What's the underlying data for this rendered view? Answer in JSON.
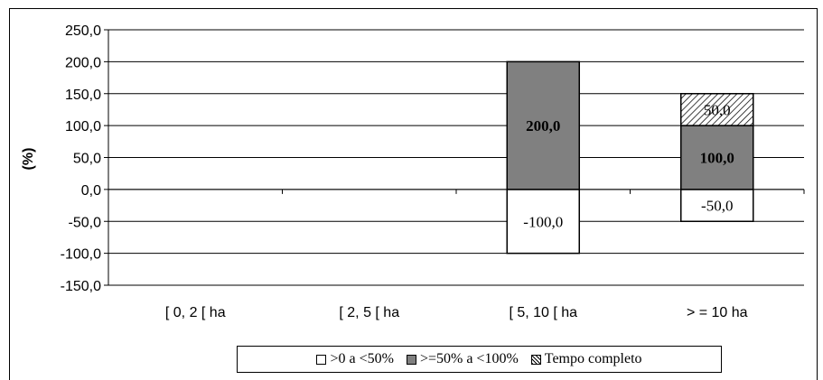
{
  "chart_data": {
    "type": "bar",
    "stacked": true,
    "ylabel": "(%)",
    "ylim": [
      -150,
      250
    ],
    "yticks": [
      -150,
      -100,
      -50,
      0,
      50,
      100,
      150,
      200,
      250
    ],
    "ytick_labels": [
      "-150,0",
      "-100,0",
      "-50,0",
      "0,0",
      "50,0",
      "100,0",
      "150,0",
      "200,0",
      "250,0"
    ],
    "grid": true,
    "legend_position": "bottom",
    "categories": [
      "[ 0, 2 [ ha",
      "[ 2, 5 [ ha",
      "[ 5, 10 [ ha",
      "> = 10 ha"
    ],
    "series": [
      {
        "name": ">0 a <50%",
        "color": "#ffffff",
        "pattern": "none",
        "values": [
          0,
          0,
          -100,
          -50
        ],
        "labels": [
          "",
          "",
          "-100,0",
          "-50,0"
        ],
        "bold": false
      },
      {
        "name": ">=50% a <100%",
        "color": "#808080",
        "pattern": "none",
        "values": [
          0,
          0,
          200,
          100
        ],
        "labels": [
          "",
          "",
          "200,0",
          "100,0"
        ],
        "bold": true
      },
      {
        "name": "Tempo completo",
        "color": "#ffffff",
        "pattern": "hatch",
        "values": [
          0,
          0,
          0,
          50
        ],
        "labels": [
          "",
          "",
          "",
          "50,0"
        ],
        "bold": false
      }
    ]
  }
}
